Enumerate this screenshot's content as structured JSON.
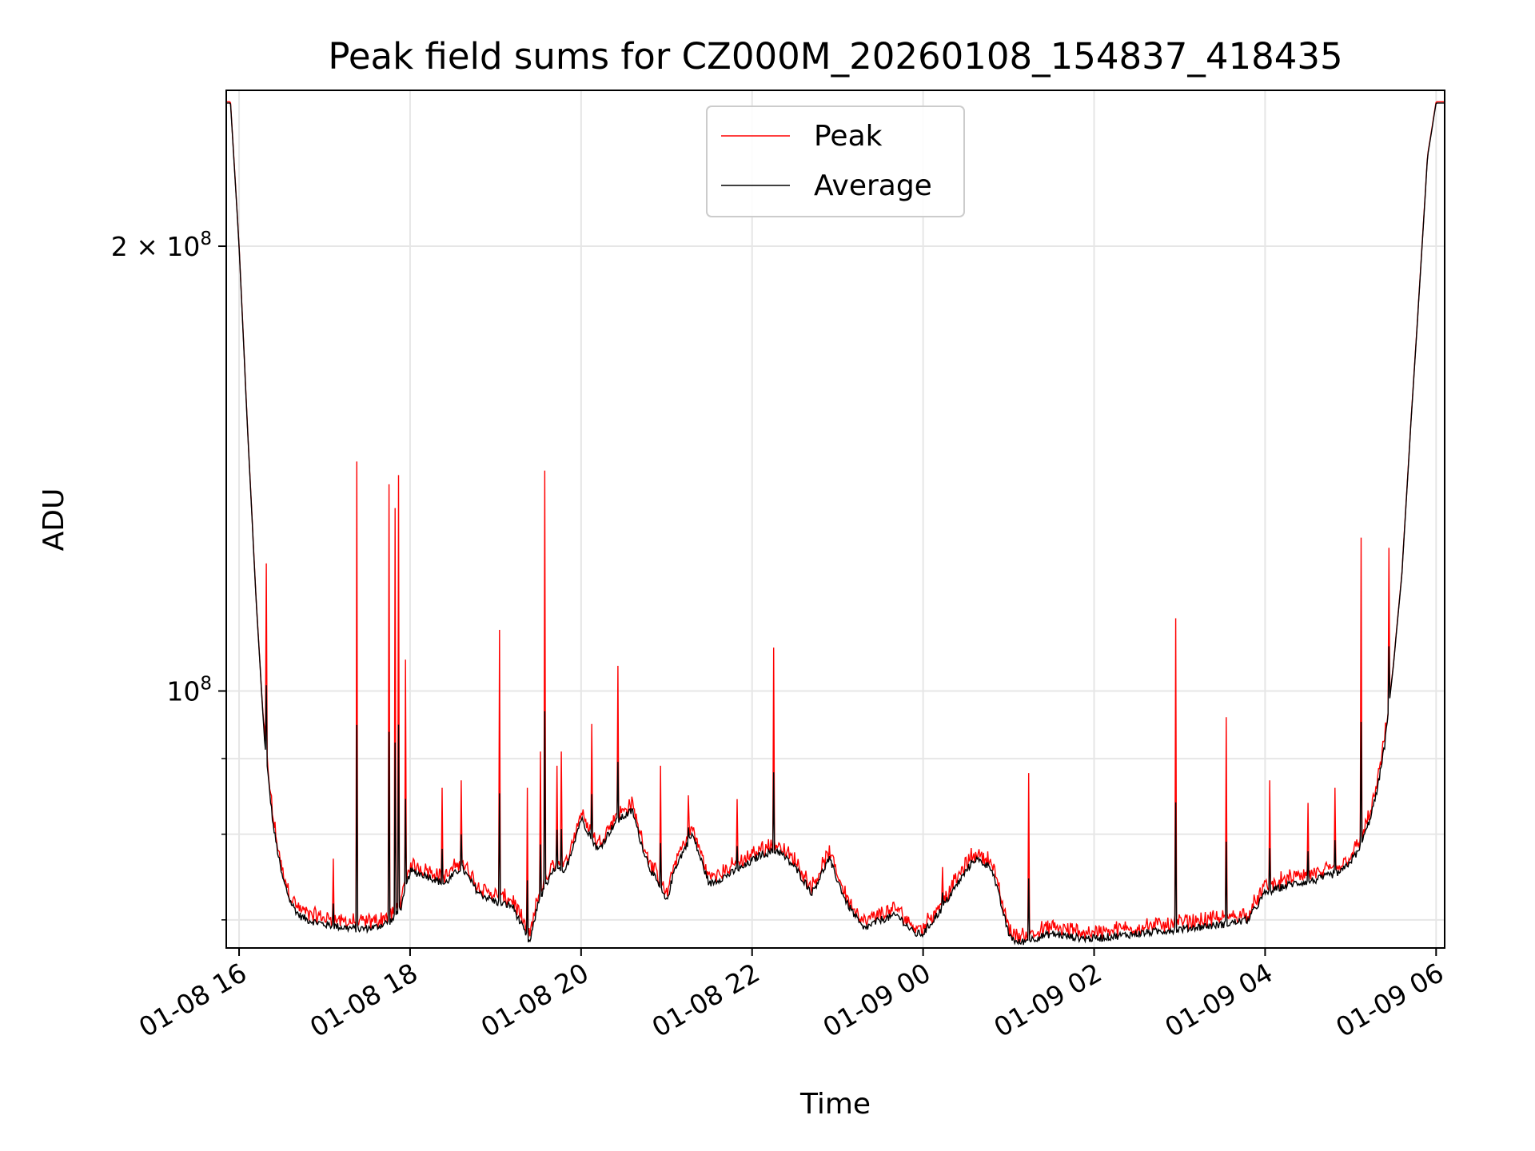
{
  "chart_data": {
    "type": "line",
    "title": "Peak field sums for CZ000M_20260108_154837_418435",
    "xlabel": "Time",
    "ylabel": "ADU",
    "yscale": "log",
    "ylim": [
      67000000,
      255000000
    ],
    "xlim_hours_from_2026_01_08_00": [
      15.85,
      30.1
    ],
    "x_ticks": [
      {
        "value": 16,
        "label": "01-08 16"
      },
      {
        "value": 18,
        "label": "01-08 18"
      },
      {
        "value": 20,
        "label": "01-08 20"
      },
      {
        "value": 22,
        "label": "01-08 22"
      },
      {
        "value": 24,
        "label": "01-09 00"
      },
      {
        "value": 26,
        "label": "01-09 02"
      },
      {
        "value": 28,
        "label": "01-09 04"
      },
      {
        "value": 30,
        "label": "01-09 06"
      }
    ],
    "y_major_ticks": [
      {
        "value": 100000000,
        "base": "10",
        "exp": "8",
        "prefix": ""
      },
      {
        "value": 200000000,
        "base": "10",
        "exp": "8",
        "prefix": "2 × "
      }
    ],
    "y_minor_ticks": [
      70000000,
      80000000,
      90000000
    ],
    "grid": true,
    "legend": {
      "position": "top-center",
      "entries": [
        {
          "name": "Peak",
          "color": "#ff0000"
        },
        {
          "name": "Average",
          "color": "#000000"
        }
      ]
    },
    "average_series": {
      "name": "Average",
      "color": "#000000",
      "x": [
        15.85,
        15.9,
        16.0,
        16.1,
        16.2,
        16.3,
        16.4,
        16.5,
        16.6,
        16.7,
        16.8,
        17.0,
        17.2,
        17.4,
        17.6,
        17.8,
        17.9,
        18.0,
        18.2,
        18.4,
        18.6,
        18.8,
        19.0,
        19.2,
        19.4,
        19.5,
        19.6,
        19.7,
        19.8,
        20.0,
        20.1,
        20.2,
        20.4,
        20.6,
        20.7,
        20.8,
        21.0,
        21.1,
        21.3,
        21.5,
        21.7,
        21.9,
        22.1,
        22.3,
        22.5,
        22.7,
        22.9,
        23.1,
        23.3,
        23.5,
        23.7,
        23.9,
        24.0,
        24.2,
        24.4,
        24.6,
        24.8,
        25.0,
        25.1,
        25.3,
        25.5,
        25.7,
        25.9,
        26.0,
        26.5,
        27.0,
        27.5,
        27.8,
        28.0,
        28.3,
        28.6,
        28.9,
        29.1,
        29.2,
        29.3,
        29.4,
        29.5,
        29.6,
        29.7,
        29.8,
        29.9,
        30.0,
        30.1
      ],
      "values": [
        250000000,
        250000000,
        200000000,
        150000000,
        115000000,
        92000000,
        81000000,
        75000000,
        72000000,
        70500000,
        70000000,
        69500000,
        69200000,
        69000000,
        69200000,
        70000000,
        71500000,
        75500000,
        75000000,
        74000000,
        76000000,
        73000000,
        72000000,
        71500000,
        67500000,
        72000000,
        74000000,
        76000000,
        75000000,
        82000000,
        80000000,
        78000000,
        81500000,
        83000000,
        79000000,
        76000000,
        72000000,
        76000000,
        80000000,
        74000000,
        75000000,
        76000000,
        77500000,
        78000000,
        76000000,
        73000000,
        77000000,
        72000000,
        69000000,
        70000000,
        70500000,
        68500000,
        68500000,
        71000000,
        74000000,
        77000000,
        76000000,
        68500000,
        67500000,
        68000000,
        68500000,
        68200000,
        68000000,
        68000000,
        68500000,
        69000000,
        69500000,
        70000000,
        73000000,
        74000000,
        74500000,
        75500000,
        78000000,
        81000000,
        85000000,
        92000000,
        104000000,
        120000000,
        150000000,
        185000000,
        230000000,
        250000000,
        250000000
      ]
    },
    "peak_spikes": [
      {
        "x": 16.32,
        "value": 122000000
      },
      {
        "x": 17.1,
        "value": 77000000
      },
      {
        "x": 17.38,
        "value": 143000000
      },
      {
        "x": 17.75,
        "value": 138000000
      },
      {
        "x": 17.82,
        "value": 133000000
      },
      {
        "x": 17.87,
        "value": 140000000
      },
      {
        "x": 17.95,
        "value": 105000000
      },
      {
        "x": 18.37,
        "value": 86000000
      },
      {
        "x": 18.6,
        "value": 87000000
      },
      {
        "x": 19.05,
        "value": 110000000
      },
      {
        "x": 19.37,
        "value": 86000000
      },
      {
        "x": 19.52,
        "value": 91000000
      },
      {
        "x": 19.58,
        "value": 141000000
      },
      {
        "x": 19.72,
        "value": 89000000
      },
      {
        "x": 19.77,
        "value": 91000000
      },
      {
        "x": 20.12,
        "value": 95000000
      },
      {
        "x": 20.43,
        "value": 104000000
      },
      {
        "x": 20.93,
        "value": 89000000
      },
      {
        "x": 21.25,
        "value": 85000000
      },
      {
        "x": 21.82,
        "value": 84500000
      },
      {
        "x": 22.25,
        "value": 107000000
      },
      {
        "x": 24.23,
        "value": 76000000
      },
      {
        "x": 24.6,
        "value": 76500000
      },
      {
        "x": 25.23,
        "value": 88000000
      },
      {
        "x": 26.95,
        "value": 112000000
      },
      {
        "x": 27.55,
        "value": 96000000
      },
      {
        "x": 28.05,
        "value": 87000000
      },
      {
        "x": 28.5,
        "value": 84000000
      },
      {
        "x": 28.82,
        "value": 86000000
      },
      {
        "x": 29.12,
        "value": 127000000
      },
      {
        "x": 29.45,
        "value": 125000000
      }
    ]
  }
}
